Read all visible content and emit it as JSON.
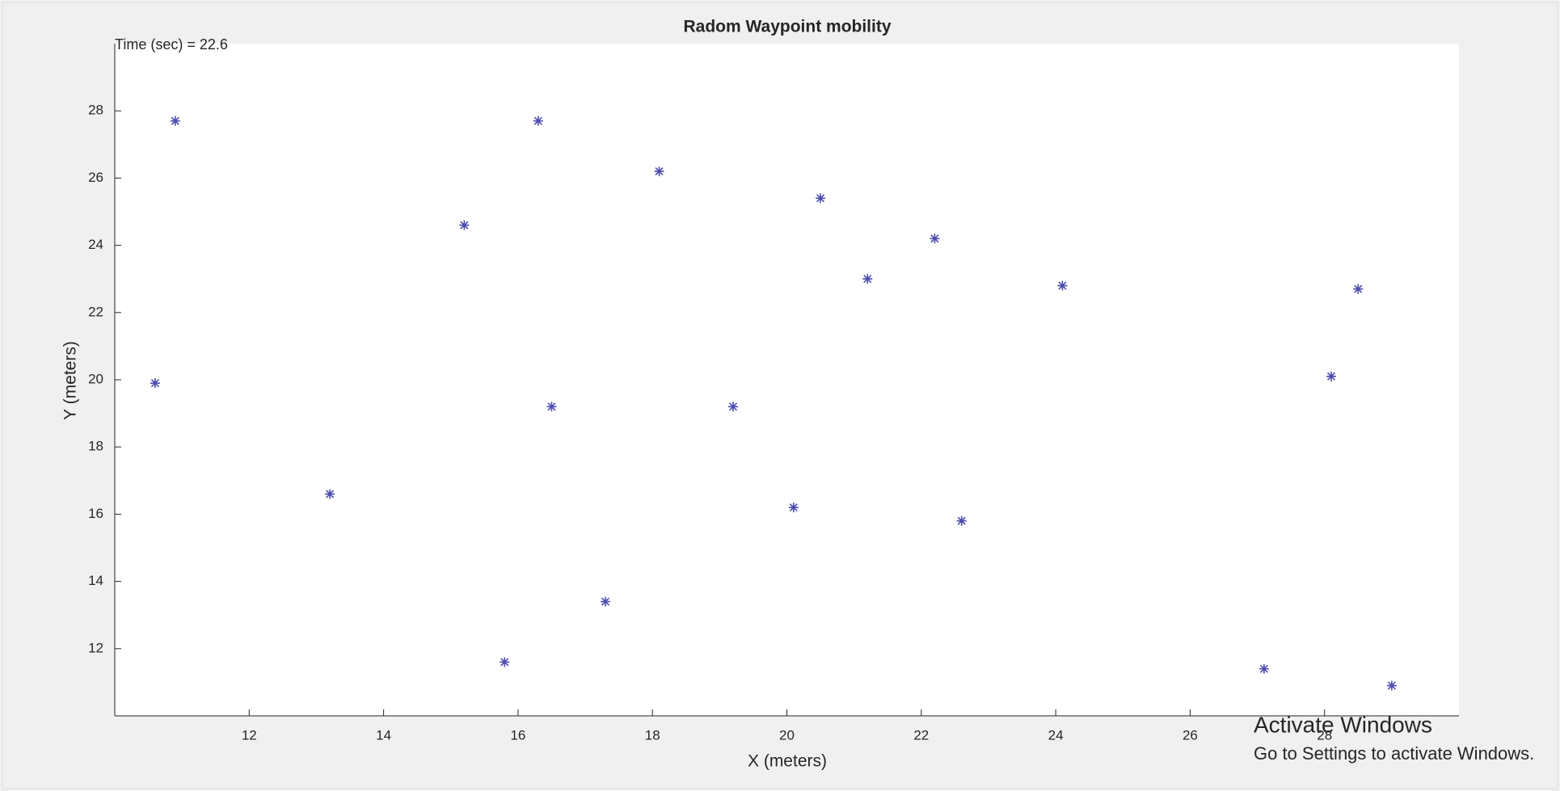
{
  "chart_data": {
    "type": "scatter",
    "title": "Radom Waypoint mobility",
    "annotation": "Time (sec) = 22.6",
    "x_label": "X (meters)",
    "y_label": "Y (meters)",
    "series": [
      {
        "color": "#4b4bb0",
        "marker": "asterisk",
        "x": [
          10.6,
          10.9,
          13.2,
          15.2,
          15.8,
          16.3,
          16.5,
          17.3,
          18.1,
          19.2,
          20.1,
          20.5,
          21.2,
          22.2,
          22.6,
          24.1,
          27.1,
          28.1,
          28.5,
          29.0
        ],
        "values": [
          19.9,
          27.7,
          16.6,
          24.6,
          11.6,
          27.7,
          19.2,
          13.4,
          26.2,
          19.2,
          16.2,
          25.4,
          23.0,
          24.2,
          15.8,
          22.8,
          11.4,
          20.1,
          22.7,
          10.9
        ]
      }
    ],
    "xlim": [
      10,
      30
    ],
    "ylim": [
      10,
      30
    ],
    "xticks": [
      12,
      14,
      16,
      18,
      20,
      22,
      24,
      26,
      28
    ],
    "yticks": [
      12,
      14,
      16,
      18,
      20,
      22,
      24,
      26,
      28
    ],
    "grid": false
  },
  "watermark": {
    "title": "Activate Windows",
    "subtitle": "Go to Settings to activate Windows."
  }
}
